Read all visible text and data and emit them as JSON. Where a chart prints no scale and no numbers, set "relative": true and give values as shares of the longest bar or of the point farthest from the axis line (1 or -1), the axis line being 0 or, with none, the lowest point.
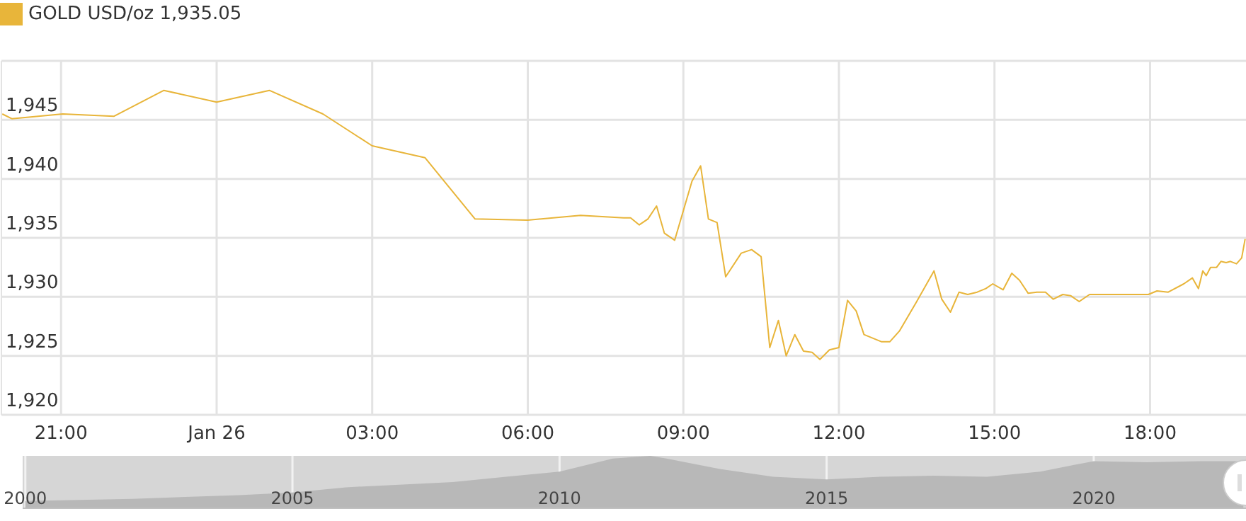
{
  "chart_data": [
    {
      "type": "line",
      "annotations": [
        "1,935.05"
      ],
      "legend": "top left",
      "grid": true,
      "marker": "none",
      "x": [
        "--01-25T19:52",
        "--01-25T20:03",
        "--01-25T21:02",
        "--01-25T22:01",
        "--01-25T22:59",
        "--01-26T00:00",
        "--01-26T01:01",
        "--01-26T02:03",
        "--01-26T03:00",
        "--01-26T04:01",
        "--01-26T04:59",
        "--01-26T06:00",
        "--01-26T07:01",
        "--01-26T07:51",
        "--01-26T07:59",
        "--01-26T08:09",
        "--01-26T08:19",
        "--01-26T08:29",
        "--01-26T08:38",
        "--01-26T08:50",
        "--01-26T09:10",
        "--01-26T09:20",
        "--01-26T09:29",
        "--01-26T09:39",
        "--01-26T09:49",
        "--01-26T10:07",
        "--01-26T10:19",
        "--01-26T10:30",
        "--01-26T10:40",
        "--01-26T10:50",
        "--01-26T10:59",
        "--01-26T11:09",
        "--01-26T11:19",
        "--01-26T11:29",
        "--01-26T11:38",
        "--01-26T11:49",
        "--01-26T12:00",
        "--01-26T12:10",
        "--01-26T12:20",
        "--01-26T12:29",
        "--01-26T12:49",
        "--01-26T12:59",
        "--01-26T13:10",
        "--01-26T13:30",
        "--01-26T13:50",
        "--01-26T13:59",
        "--01-26T14:09",
        "--01-26T14:19",
        "--01-26T14:29",
        "--01-26T14:40",
        "--01-26T14:50",
        "--01-26T14:58",
        "--01-26T15:10",
        "--01-26T15:20",
        "--01-26T15:29",
        "--01-26T15:39",
        "--01-26T15:49",
        "--01-26T15:59",
        "--01-26T16:08",
        "--01-26T16:19",
        "--01-26T16:28",
        "--01-26T16:38",
        "--01-26T16:50",
        "--01-26T17:58",
        "--01-26T18:08",
        "--01-26T18:21",
        "--01-26T18:39",
        "--01-26T18:49",
        "--01-26T18:56",
        "--01-26T19:01",
        "--01-26T19:05",
        "--01-26T19:10",
        "--01-26T19:17",
        "--01-26T19:22",
        "--01-26T19:28",
        "--01-26T19:33",
        "--01-26T19:40",
        "--01-26T19:46",
        "--01-26T19:50"
      ],
      "series": [
        {
          "name": "GOLD USD/oz",
          "color": "#e8b53a",
          "values": [
            1945.5,
            1945.1,
            1945.5,
            1945.3,
            1947.5,
            1946.5,
            1947.5,
            1945.5,
            1942.8,
            1941.8,
            1936.6,
            1936.5,
            1936.9,
            1936.7,
            1936.7,
            1936.1,
            1936.6,
            1937.7,
            1935.4,
            1934.8,
            1939.8,
            1941.1,
            1936.6,
            1936.3,
            1931.7,
            1933.7,
            1934.0,
            1933.4,
            1925.7,
            1928.0,
            1925.0,
            1926.8,
            1925.4,
            1925.3,
            1924.7,
            1925.5,
            1925.7,
            1929.7,
            1928.8,
            1926.8,
            1926.2,
            1926.2,
            1927.1,
            1929.6,
            1932.2,
            1929.8,
            1928.7,
            1930.4,
            1930.2,
            1930.4,
            1930.7,
            1931.1,
            1930.6,
            1932.0,
            1931.4,
            1930.3,
            1930.4,
            1930.4,
            1929.8,
            1930.2,
            1930.1,
            1929.6,
            1930.2,
            1930.2,
            1930.5,
            1930.4,
            1931.1,
            1931.6,
            1930.7,
            1932.2,
            1931.8,
            1932.5,
            1932.5,
            1933.0,
            1932.9,
            1933.0,
            1932.8,
            1933.3,
            1934.9
          ]
        }
      ],
      "xlim": [
        "--01-25T19:51",
        "--01-26T19:51"
      ],
      "xticks": [
        {
          "value": "--01-25T21:00",
          "label": "21:00"
        },
        {
          "value": "--01-26T00:00",
          "label": "Jan 26"
        },
        {
          "value": "--01-26T03:00",
          "label": "03:00"
        },
        {
          "value": "--01-26T06:00",
          "label": "06:00"
        },
        {
          "value": "--01-26T09:00",
          "label": "09:00"
        },
        {
          "value": "--01-26T12:00",
          "label": "12:00"
        },
        {
          "value": "--01-26T15:00",
          "label": "15:00"
        },
        {
          "value": "--01-26T18:00",
          "label": "18:00"
        }
      ],
      "ylim": [
        1920,
        1950
      ],
      "yticks": [
        {
          "value": 1920,
          "label": "1,920"
        },
        {
          "value": 1925,
          "label": "1,925"
        },
        {
          "value": 1930,
          "label": "1,930"
        },
        {
          "value": 1935,
          "label": "1,935"
        },
        {
          "value": 1940,
          "label": "1,940"
        },
        {
          "value": 1945,
          "label": "1,945"
        },
        {
          "value": 1950,
          "label": null
        }
      ]
    },
    {
      "type": "area",
      "relative": true,
      "grid": "x",
      "color": "#b8b8b8",
      "x": [
        2000,
        2002,
        2004,
        2005,
        2006,
        2007,
        2008,
        2009,
        2010,
        2011,
        2011.7,
        2012,
        2013,
        2014,
        2015,
        2016,
        2017,
        2018,
        2019,
        2020,
        2021,
        2022,
        2022.8
      ],
      "values": [
        0.14,
        0.18,
        0.25,
        0.3,
        0.4,
        0.45,
        0.5,
        0.6,
        0.7,
        0.95,
        1,
        0.95,
        0.75,
        0.6,
        0.55,
        0.6,
        0.62,
        0.6,
        0.7,
        0.9,
        0.88,
        0.9,
        0.9
      ],
      "xlim": [
        1999.95,
        2022.85
      ],
      "xticks": [
        2000,
        2005,
        2010,
        2015,
        2020
      ]
    }
  ]
}
